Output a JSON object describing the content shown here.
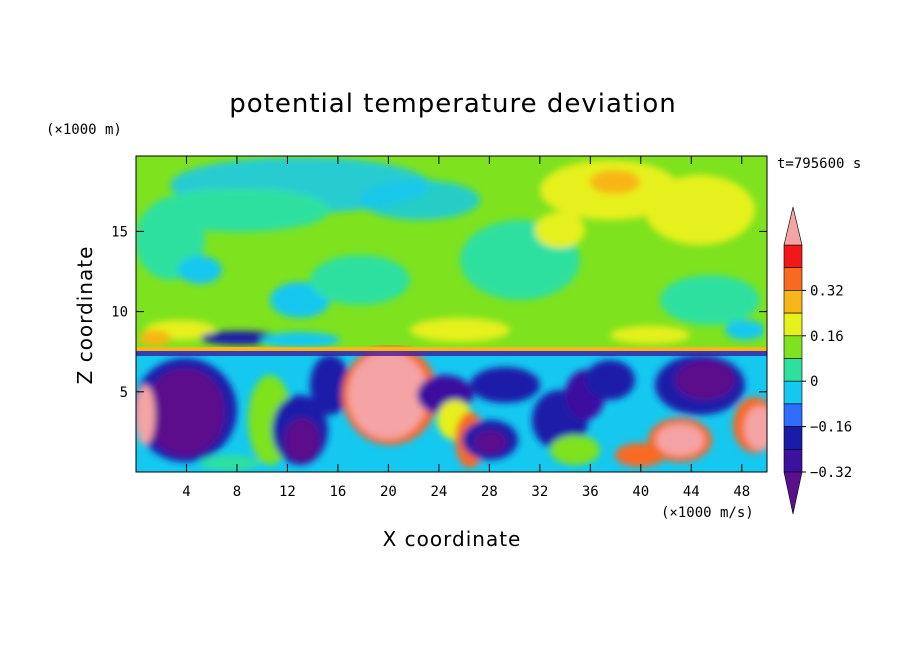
{
  "chart_data": {
    "type": "heatmap",
    "title": "potential temperature deviation",
    "xlabel": "X coordinate",
    "ylabel": "Z coordinate",
    "x_unit": "(×1000 m/s)",
    "y_unit": "(×1000 m)",
    "time_label": "t=795600 s",
    "xlim": [
      0,
      50
    ],
    "ylim": [
      0,
      19.7
    ],
    "x_ticks": [
      "4",
      "8",
      "12",
      "16",
      "20",
      "24",
      "28",
      "32",
      "36",
      "40",
      "44",
      "48"
    ],
    "y_ticks": [
      "5",
      "10",
      "15"
    ],
    "colorbar": {
      "levels": [
        "0.32",
        "0.16",
        "0",
        "−0.16",
        "−0.32"
      ],
      "colors": [
        "#5b0f8c",
        "#3d10a0",
        "#1a1aa8",
        "#2f6cff",
        "#14c8f0",
        "#2ee0a0",
        "#7ee21e",
        "#e6f01a",
        "#f8b618",
        "#f86a20",
        "#f01818",
        "#f4a4a4"
      ],
      "bounds": [
        -0.4,
        -0.32,
        -0.24,
        -0.16,
        -0.08,
        0,
        0.08,
        0.16,
        0.24,
        0.32,
        0.4
      ]
    }
  }
}
